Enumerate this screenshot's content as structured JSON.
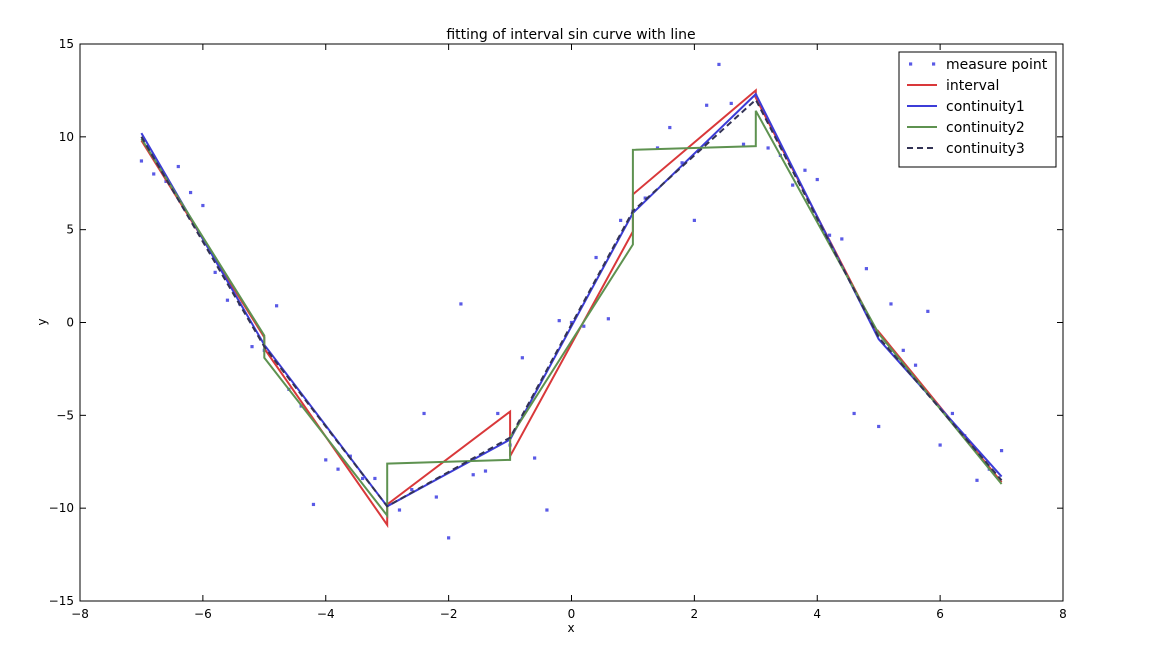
{
  "chart_data": {
    "type": "line",
    "title": "fitting of interval  sin curve with line",
    "xlabel": "x",
    "ylabel": "y",
    "xlim": [
      -8,
      8
    ],
    "ylim": [
      -15,
      15
    ],
    "xticks": [
      -8,
      -6,
      -4,
      -2,
      0,
      2,
      4,
      6,
      8
    ],
    "yticks": [
      -15,
      -10,
      -5,
      0,
      5,
      10,
      15
    ],
    "xtick_labels": [
      "−8",
      "−6",
      "−4",
      "−2",
      "0",
      "2",
      "4",
      "6",
      "8"
    ],
    "ytick_labels": [
      "−15",
      "−10",
      "−5",
      "0",
      "5",
      "10",
      "15"
    ],
    "grid": false,
    "legend_position": "top-right",
    "series": [
      {
        "name": "measure point",
        "kind": "scatter",
        "color": "#5a5ae6",
        "x": [
          -7.0,
          -6.8,
          -6.6,
          -6.4,
          -6.2,
          -6.0,
          -5.8,
          -5.6,
          -5.4,
          -5.2,
          -5.0,
          -4.8,
          -4.6,
          -4.4,
          -4.2,
          -4.0,
          -3.8,
          -3.6,
          -3.4,
          -3.2,
          -3.0,
          -2.8,
          -2.6,
          -2.4,
          -2.2,
          -2.0,
          -1.8,
          -1.6,
          -1.4,
          -1.2,
          -1.0,
          -0.8,
          -0.6,
          -0.4,
          -0.2,
          0.0,
          0.2,
          0.4,
          0.6,
          0.8,
          1.0,
          1.2,
          1.4,
          1.6,
          1.8,
          2.0,
          2.2,
          2.4,
          2.6,
          2.8,
          3.0,
          3.2,
          3.4,
          3.6,
          3.8,
          4.0,
          4.2,
          4.4,
          4.6,
          4.8,
          5.0,
          5.2,
          5.4,
          5.6,
          5.8,
          6.0,
          6.2,
          6.4,
          6.6,
          6.8,
          7.0
        ],
        "y": [
          8.7,
          8.0,
          7.6,
          8.4,
          7.0,
          6.3,
          2.7,
          1.2,
          1.0,
          -1.3,
          -1.5,
          0.9,
          -3.6,
          -4.5,
          -9.8,
          -7.4,
          -7.9,
          -7.2,
          -8.4,
          -8.4,
          -9.8,
          -10.1,
          -9.0,
          -4.9,
          -9.4,
          -11.6,
          1.0,
          -8.2,
          -8.0,
          -4.9,
          -6.6,
          -1.9,
          -7.3,
          -10.1,
          0.1,
          0.0,
          -0.2,
          3.5,
          0.2,
          5.5,
          6.0,
          6.7,
          9.4,
          10.5,
          8.6,
          5.5,
          11.7,
          13.9,
          11.8,
          9.6,
          12.2,
          9.4,
          9.0,
          7.4,
          8.2,
          7.7,
          4.7,
          4.5,
          -4.9,
          2.9,
          -5.6,
          1.0,
          -1.5,
          -2.3,
          0.6,
          -6.6,
          -4.9,
          -6.1,
          -8.5,
          -7.9,
          -6.9
        ]
      },
      {
        "name": "interval",
        "kind": "line",
        "color": "#d9383a",
        "x": [
          -7,
          -5,
          -5,
          -3,
          -3,
          -1,
          -1,
          1,
          1,
          3,
          3,
          5,
          5,
          7
        ],
        "y": [
          9.8,
          -0.8,
          -1.4,
          -10.9,
          -9.8,
          -4.8,
          -7.2,
          4.9,
          6.9,
          12.5,
          12.1,
          -0.7,
          -0.5,
          -8.6
        ]
      },
      {
        "name": "continuity1",
        "kind": "line",
        "color": "#3c3cd8",
        "x": [
          -7,
          -5,
          -3,
          -1,
          1,
          3,
          5,
          7
        ],
        "y": [
          10.2,
          -1.2,
          -9.9,
          -6.3,
          5.9,
          12.3,
          -0.9,
          -8.3
        ]
      },
      {
        "name": "continuity2",
        "kind": "line",
        "color": "#5e9250",
        "x": [
          -7,
          -5,
          -5,
          -3,
          -3,
          -1,
          -1,
          1,
          1,
          3,
          3,
          5,
          5,
          7
        ],
        "y": [
          9.9,
          -0.7,
          -1.9,
          -10.4,
          -7.6,
          -7.4,
          -6.2,
          4.2,
          9.3,
          9.5,
          11.4,
          -0.6,
          -0.6,
          -8.7
        ]
      },
      {
        "name": "continuity3",
        "kind": "dashed",
        "color": "#333355",
        "x": [
          -7,
          -5,
          -3,
          -1,
          1,
          3,
          5,
          7
        ],
        "y": [
          10.0,
          -1.3,
          -9.9,
          -6.2,
          6.0,
          12.0,
          -0.8,
          -8.5
        ]
      }
    ]
  }
}
